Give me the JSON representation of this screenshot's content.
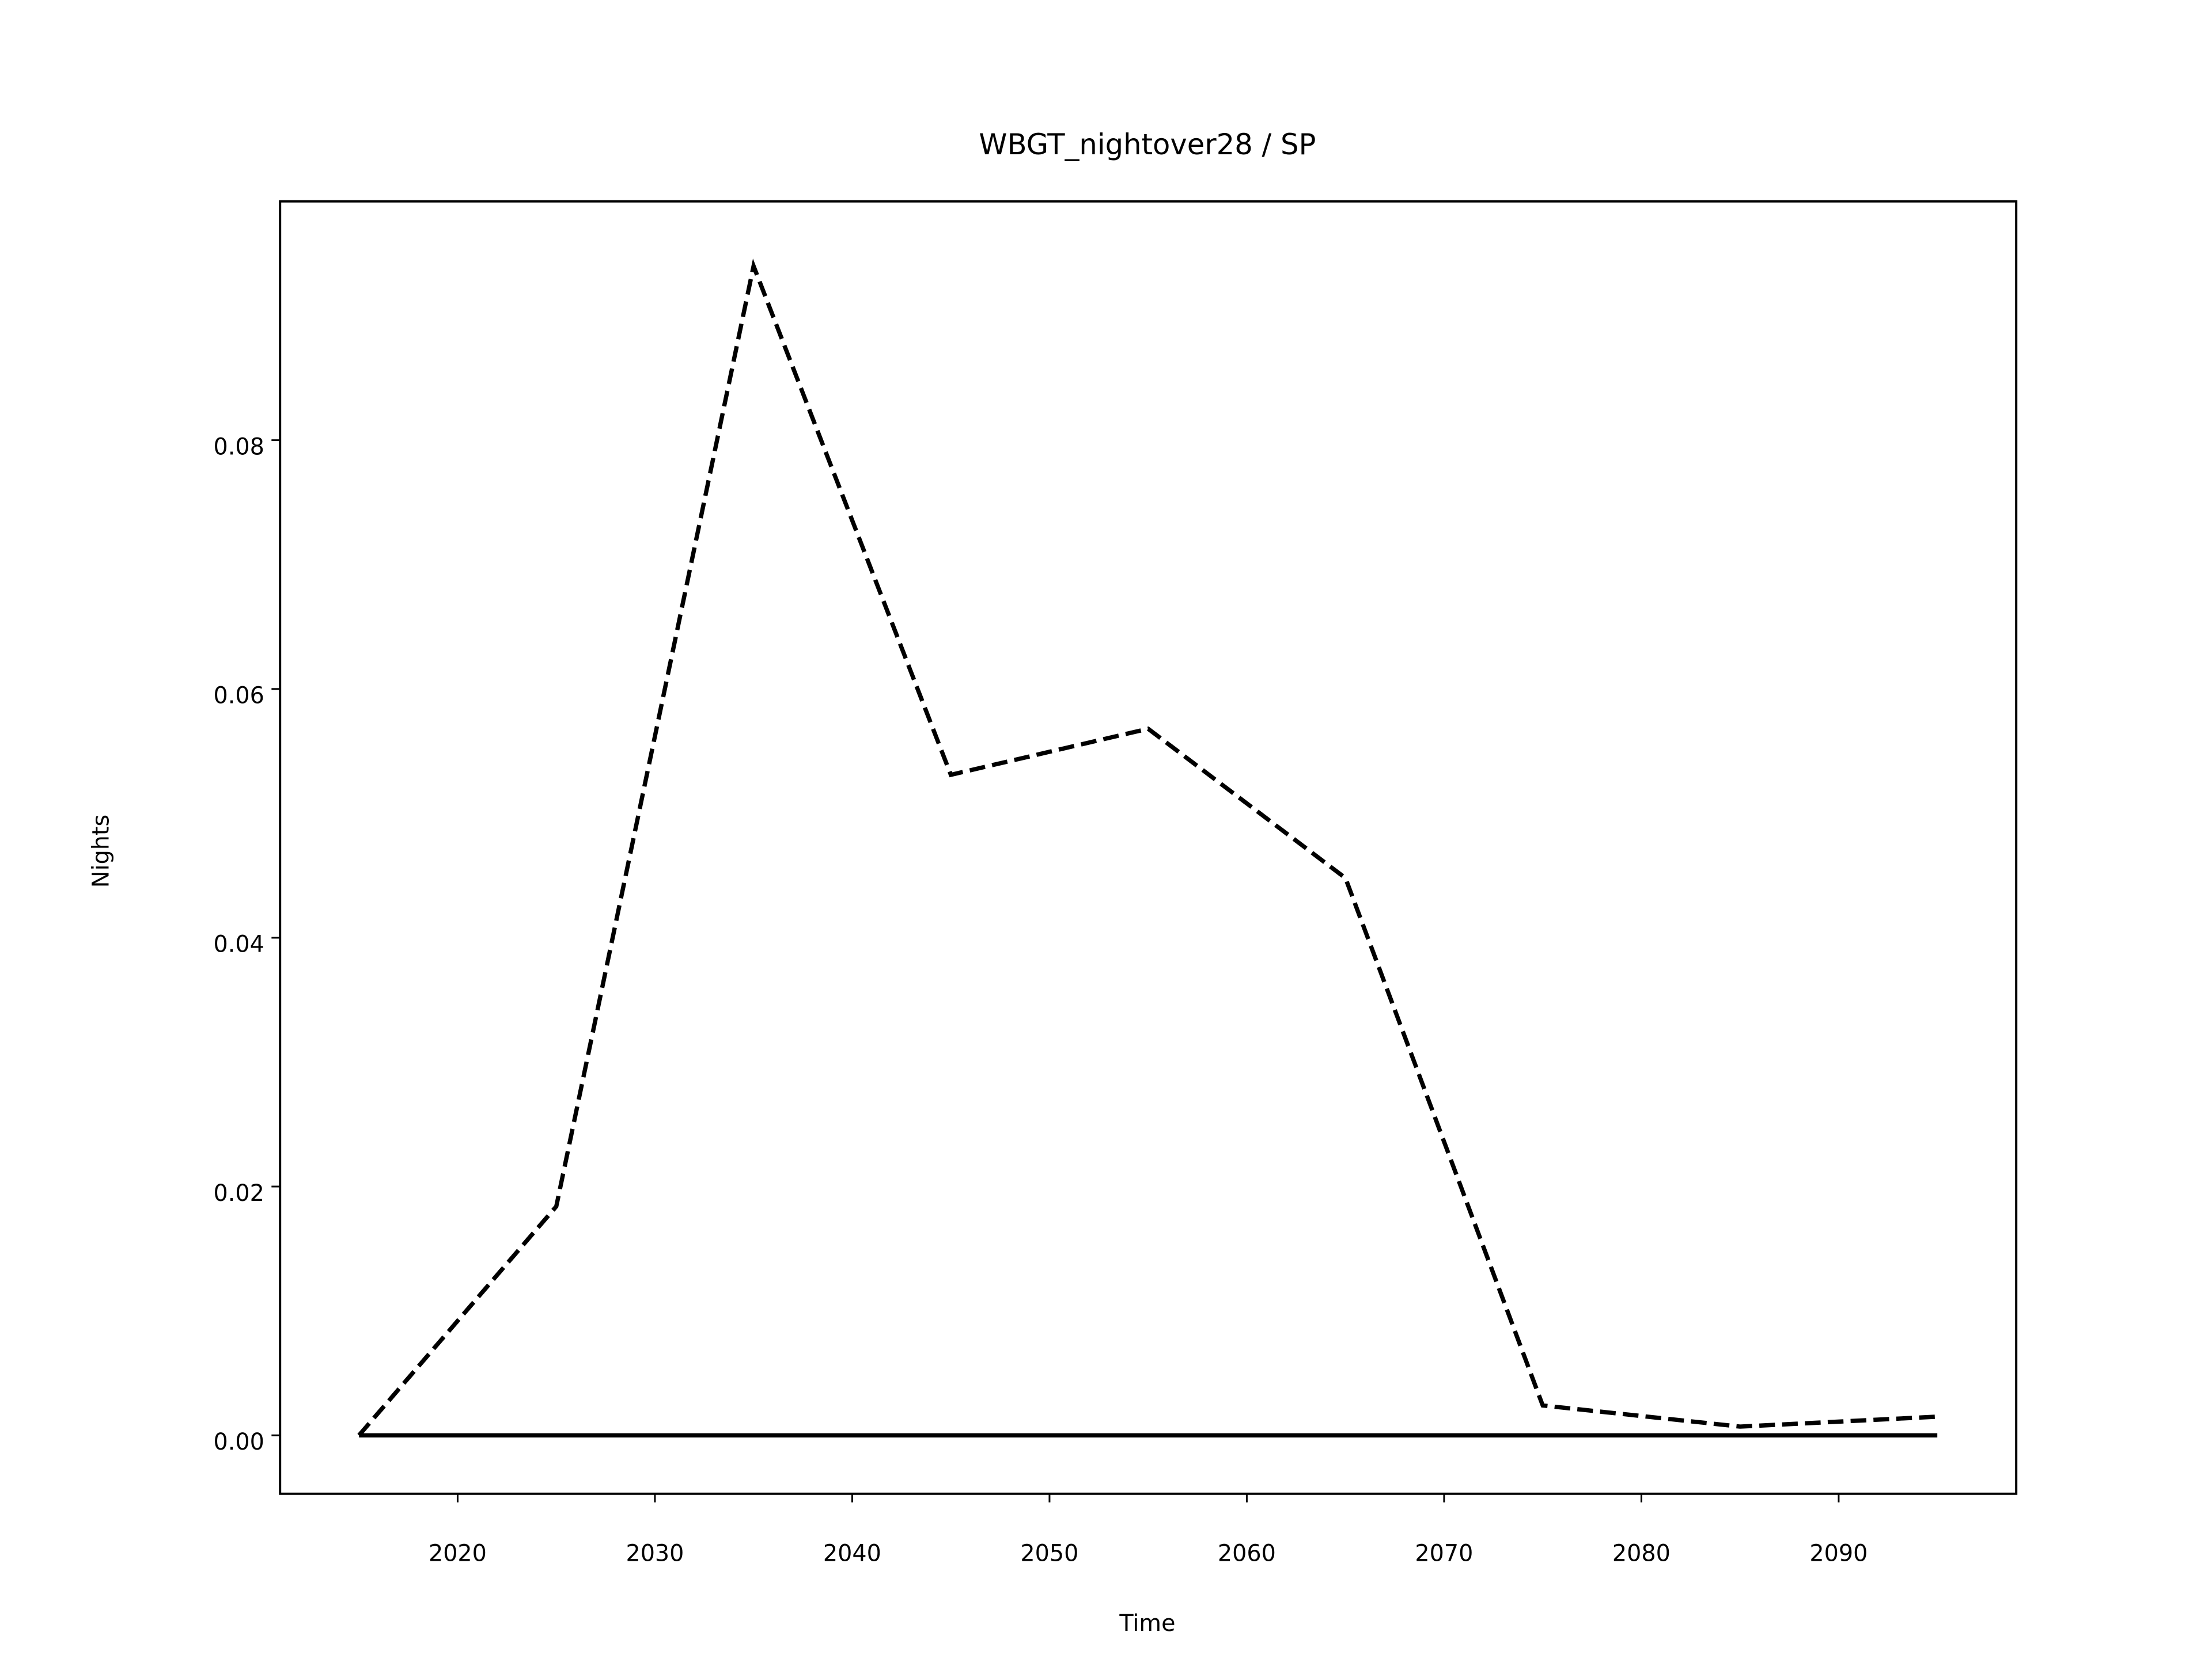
{
  "chart_data": {
    "type": "line",
    "title": "WBGT_nightover28 / SP",
    "x_label": "Time",
    "y_label": "Nights",
    "x": [
      2015,
      2025,
      2035,
      2045,
      2055,
      2065,
      2075,
      2085,
      2095
    ],
    "series": [
      {
        "color": "#000000",
        "dash": "dashed",
        "values": [
          0,
          0.0184,
          0.094,
          0.0531,
          0.0568,
          0.0448,
          0.0024,
          0.0007,
          0.0015
        ]
      },
      {
        "color": "#000000",
        "dash": "solid",
        "values": [
          0,
          0,
          0,
          0,
          0,
          0,
          0,
          0,
          0
        ]
      }
    ],
    "xlim": [
      2011,
      2099
    ],
    "xticks": [
      2020,
      2030,
      2040,
      2050,
      2060,
      2070,
      2080,
      2090
    ],
    "ylim": [
      -0.0047,
      0.0992
    ],
    "yticks": [
      {
        "value": 0,
        "label": "0.00"
      },
      {
        "value": 0.02,
        "label": "0.02"
      },
      {
        "value": 0.04,
        "label": "0.04"
      },
      {
        "value": 0.06,
        "label": "0.06"
      },
      {
        "value": 0.08,
        "label": "0.08"
      }
    ],
    "grid": false
  }
}
